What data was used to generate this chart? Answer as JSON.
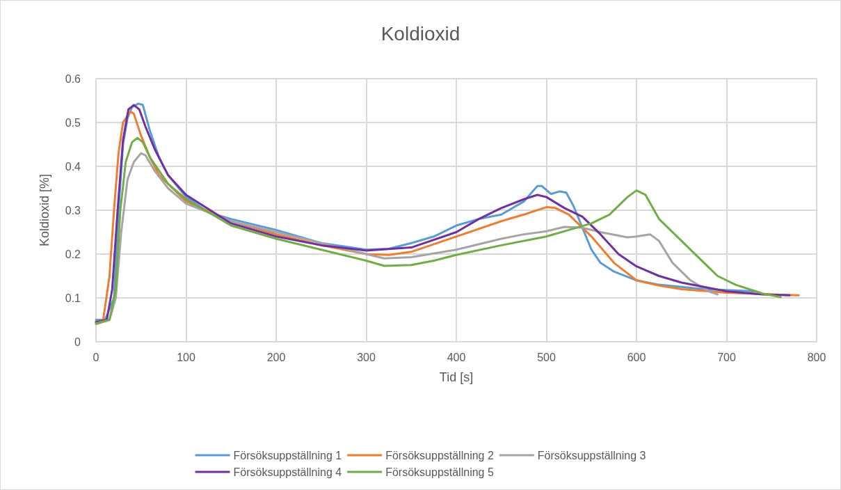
{
  "chart_data": {
    "type": "line",
    "title": "Koldioxid",
    "xlabel": "Tid [s]",
    "ylabel": "Koldioxid [%]",
    "xlim": [
      0,
      800
    ],
    "xticks": [
      0,
      100,
      200,
      300,
      400,
      500,
      600,
      700,
      800
    ],
    "ylim": [
      0,
      0.6
    ],
    "yticks": [
      0,
      0.1,
      0.2,
      0.3,
      0.4,
      0.5,
      0.6
    ],
    "grid": true,
    "legend": "bottom",
    "marker": "none",
    "line_style": "solid",
    "series": [
      {
        "name": "Försöksuppställning 1",
        "color": "#5b9bd5",
        "x": [
          0,
          10,
          20,
          25,
          30,
          35,
          40,
          47,
          52,
          60,
          70,
          80,
          100,
          125,
          150,
          200,
          250,
          300,
          325,
          350,
          375,
          400,
          425,
          450,
          475,
          490,
          495,
          505,
          515,
          522,
          530,
          540,
          550,
          560,
          575,
          600,
          625,
          650,
          675,
          700,
          730
        ],
        "values": [
          0.05,
          0.05,
          0.1,
          0.3,
          0.45,
          0.51,
          0.535,
          0.543,
          0.54,
          0.48,
          0.42,
          0.38,
          0.33,
          0.295,
          0.28,
          0.255,
          0.225,
          0.21,
          0.212,
          0.225,
          0.24,
          0.265,
          0.28,
          0.29,
          0.32,
          0.355,
          0.355,
          0.337,
          0.343,
          0.34,
          0.31,
          0.26,
          0.21,
          0.18,
          0.16,
          0.14,
          0.13,
          0.125,
          0.12,
          0.118,
          0.115
        ]
      },
      {
        "name": "Försöksuppställning 2",
        "color": "#ed7d31",
        "x": [
          0,
          8,
          15,
          20,
          25,
          30,
          38,
          42,
          50,
          60,
          70,
          80,
          100,
          150,
          200,
          250,
          300,
          325,
          350,
          400,
          450,
          475,
          500,
          510,
          525,
          550,
          575,
          600,
          625,
          650,
          700,
          750,
          780
        ],
        "values": [
          0.045,
          0.05,
          0.15,
          0.3,
          0.43,
          0.5,
          0.525,
          0.52,
          0.47,
          0.42,
          0.38,
          0.36,
          0.32,
          0.275,
          0.245,
          0.22,
          0.2,
          0.198,
          0.205,
          0.24,
          0.275,
          0.29,
          0.307,
          0.305,
          0.29,
          0.24,
          0.18,
          0.14,
          0.128,
          0.12,
          0.112,
          0.108,
          0.106
        ]
      },
      {
        "name": "Försöksuppställning 3",
        "color": "#a5a5a5",
        "x": [
          0,
          15,
          22,
          28,
          35,
          42,
          50,
          55,
          65,
          80,
          100,
          150,
          200,
          250,
          300,
          320,
          350,
          400,
          450,
          475,
          500,
          520,
          540,
          560,
          590,
          600,
          615,
          625,
          640,
          660,
          680,
          690
        ],
        "values": [
          0.04,
          0.05,
          0.1,
          0.25,
          0.37,
          0.41,
          0.43,
          0.425,
          0.39,
          0.35,
          0.315,
          0.275,
          0.25,
          0.225,
          0.2,
          0.19,
          0.193,
          0.21,
          0.235,
          0.245,
          0.252,
          0.262,
          0.26,
          0.25,
          0.238,
          0.24,
          0.245,
          0.23,
          0.18,
          0.14,
          0.115,
          0.108
        ]
      },
      {
        "name": "Försöksuppställning 4",
        "color": "#7030a0",
        "x": [
          0,
          12,
          18,
          24,
          30,
          36,
          42,
          48,
          55,
          65,
          80,
          100,
          150,
          200,
          250,
          300,
          350,
          400,
          425,
          450,
          475,
          490,
          500,
          520,
          540,
          560,
          580,
          600,
          625,
          650,
          675,
          700,
          740,
          770
        ],
        "values": [
          0.045,
          0.05,
          0.12,
          0.3,
          0.46,
          0.53,
          0.54,
          0.53,
          0.49,
          0.44,
          0.38,
          0.335,
          0.27,
          0.24,
          0.22,
          0.208,
          0.215,
          0.25,
          0.28,
          0.305,
          0.325,
          0.335,
          0.33,
          0.305,
          0.285,
          0.245,
          0.2,
          0.172,
          0.15,
          0.135,
          0.125,
          0.115,
          0.108,
          0.106
        ]
      },
      {
        "name": "Försöksuppställning 5",
        "color": "#70ad47",
        "x": [
          0,
          15,
          22,
          27,
          33,
          40,
          46,
          52,
          60,
          80,
          100,
          150,
          200,
          250,
          300,
          320,
          350,
          375,
          400,
          450,
          500,
          525,
          550,
          570,
          590,
          600,
          610,
          625,
          650,
          670,
          690,
          710,
          740,
          760
        ],
        "values": [
          0.042,
          0.05,
          0.12,
          0.3,
          0.41,
          0.455,
          0.465,
          0.455,
          0.42,
          0.36,
          0.325,
          0.265,
          0.235,
          0.21,
          0.185,
          0.173,
          0.175,
          0.185,
          0.198,
          0.22,
          0.24,
          0.255,
          0.27,
          0.29,
          0.33,
          0.345,
          0.335,
          0.28,
          0.23,
          0.19,
          0.15,
          0.13,
          0.11,
          0.102
        ]
      }
    ]
  }
}
